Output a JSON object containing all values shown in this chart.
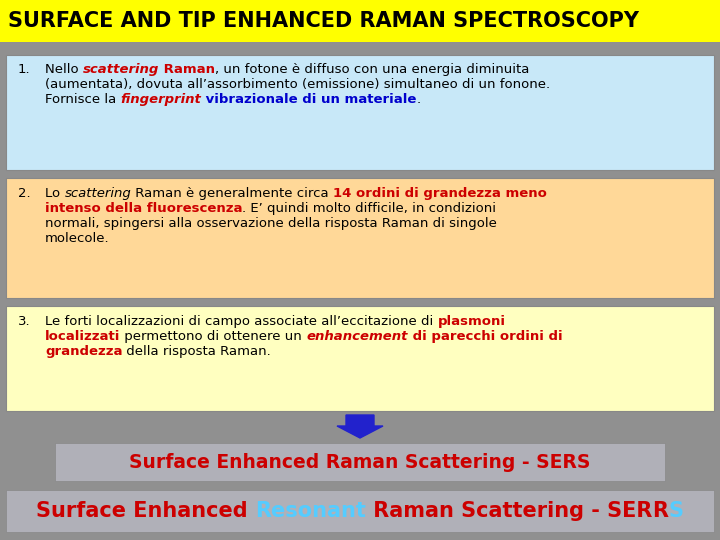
{
  "title": "SURFACE AND TIP ENHANCED RAMAN SPECTROSCOPY",
  "title_bg": "#FFFF00",
  "title_color": "#000000",
  "bg_color": "#909090",
  "box1_bg": "#C8E8F8",
  "box2_bg": "#FFD898",
  "box3_bg": "#FFFFC0",
  "sers_box_bg": "#B0B0B8",
  "serrs_box_bg": "#B0B0B8",
  "sers_text": "Surface Enhanced Raman Scattering - SERS",
  "sers_color": "#CC0000",
  "serrs_parts": [
    {
      "text": "Surface Enhanced ",
      "color": "#CC0000"
    },
    {
      "text": "Resonant",
      "color": "#55CCFF"
    },
    {
      "text": " Raman Scattering - SER",
      "color": "#CC0000"
    },
    {
      "text": "R",
      "color": "#CC0000"
    },
    {
      "text": "S",
      "color": "#55CCFF"
    }
  ],
  "arrow_color": "#2222CC",
  "fs_title": 15,
  "fs_body": 9.5,
  "fs_sers": 13.5,
  "fs_serrs": 15
}
